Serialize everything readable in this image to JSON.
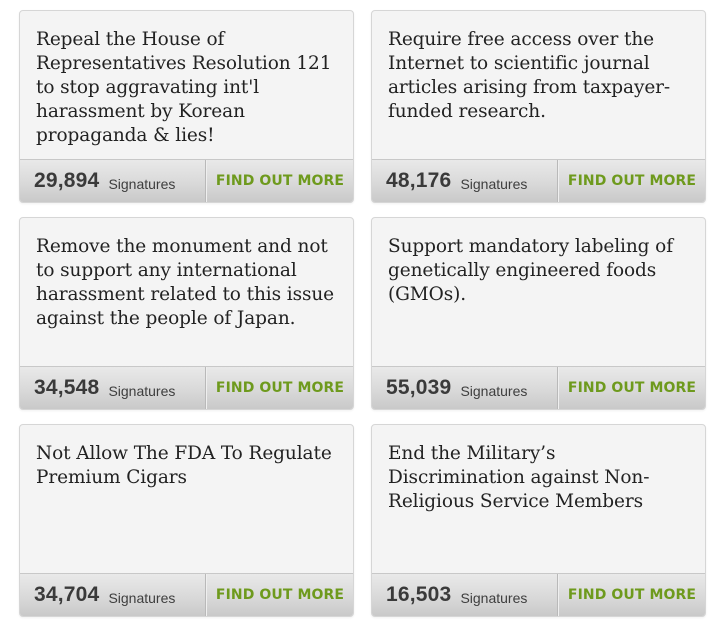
{
  "petitions": [
    {
      "title": "Repeal the House of Representatives Resolution 121 to stop aggravating int'l harassment by Korean propaganda & lies!",
      "count": "29,894",
      "signatures_label": "Signatures",
      "cta": "FIND OUT MORE"
    },
    {
      "title": "Require free access over the Internet to scientific journal articles arising from taxpayer-funded research.",
      "count": "48,176",
      "signatures_label": "Signatures",
      "cta": "FIND OUT MORE"
    },
    {
      "title": "Remove the monument and not to support any international harassment related to this issue against the people of Japan.",
      "count": "34,548",
      "signatures_label": "Signatures",
      "cta": "FIND OUT MORE"
    },
    {
      "title": "Support mandatory labeling of genetically engineered foods (GMOs).",
      "count": "55,039",
      "signatures_label": "Signatures",
      "cta": "FIND OUT MORE"
    },
    {
      "title": "Not Allow The FDA To Regulate Premium Cigars",
      "count": "34,704",
      "signatures_label": "Signatures",
      "cta": "FIND OUT MORE"
    },
    {
      "title": "End the Military’s Discrimination against Non-Religious Service Members",
      "count": "16,503",
      "signatures_label": "Signatures",
      "cta": "FIND OUT MORE"
    }
  ]
}
